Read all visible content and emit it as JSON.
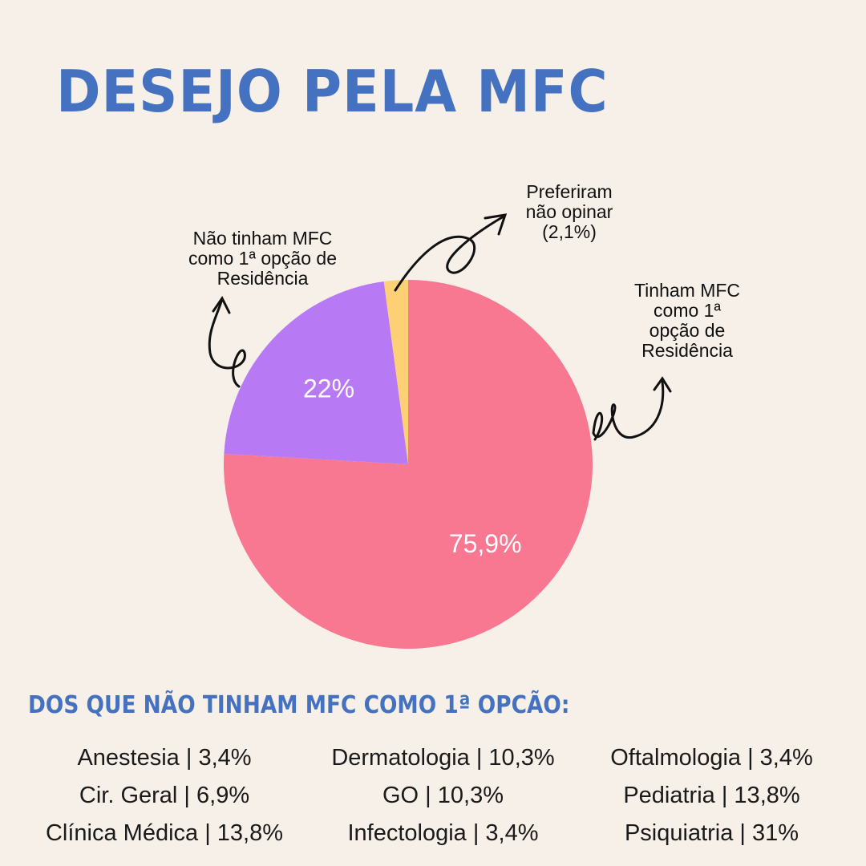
{
  "colors": {
    "title": "#4472c0",
    "background": "#f7f0e8"
  },
  "title": "DESEJO PELA MFC",
  "chart_data": {
    "type": "pie",
    "slices": [
      {
        "label": "Tinham MFC como 1ª opção de Residência",
        "label_lines": [
          "Tinham MFC",
          "como 1ª",
          "opção de",
          "Residência"
        ],
        "value": 75.9,
        "display": "75,9%",
        "color": "#f87791"
      },
      {
        "label": "Não tinham MFC como 1ª opção de Residência",
        "label_lines": [
          "Não tinham MFC",
          "como 1ª opção de",
          "Residência"
        ],
        "value": 22,
        "display": "22%",
        "color": "#b879f5"
      },
      {
        "label": "Preferiram não opinar (2,1%)",
        "label_lines": [
          "Preferiram",
          "não opinar",
          "(2,1%)"
        ],
        "value": 2.1,
        "display": "",
        "color": "#fdd076"
      }
    ]
  },
  "subtitle": "DOS QUE NÃO TINHAM MFC COMO 1ª OPCÃO:",
  "specialties": [
    [
      "Anestesia | 3,4%",
      "Dermatologia | 10,3%",
      "Oftalmologia | 3,4%"
    ],
    [
      "Cir. Geral | 6,9%",
      "GO | 10,3%",
      "Pediatria | 13,8%"
    ],
    [
      "Clínica Médica | 13,8%",
      "Infectologia | 3,4%",
      "Psiquiatria | 31%"
    ]
  ]
}
